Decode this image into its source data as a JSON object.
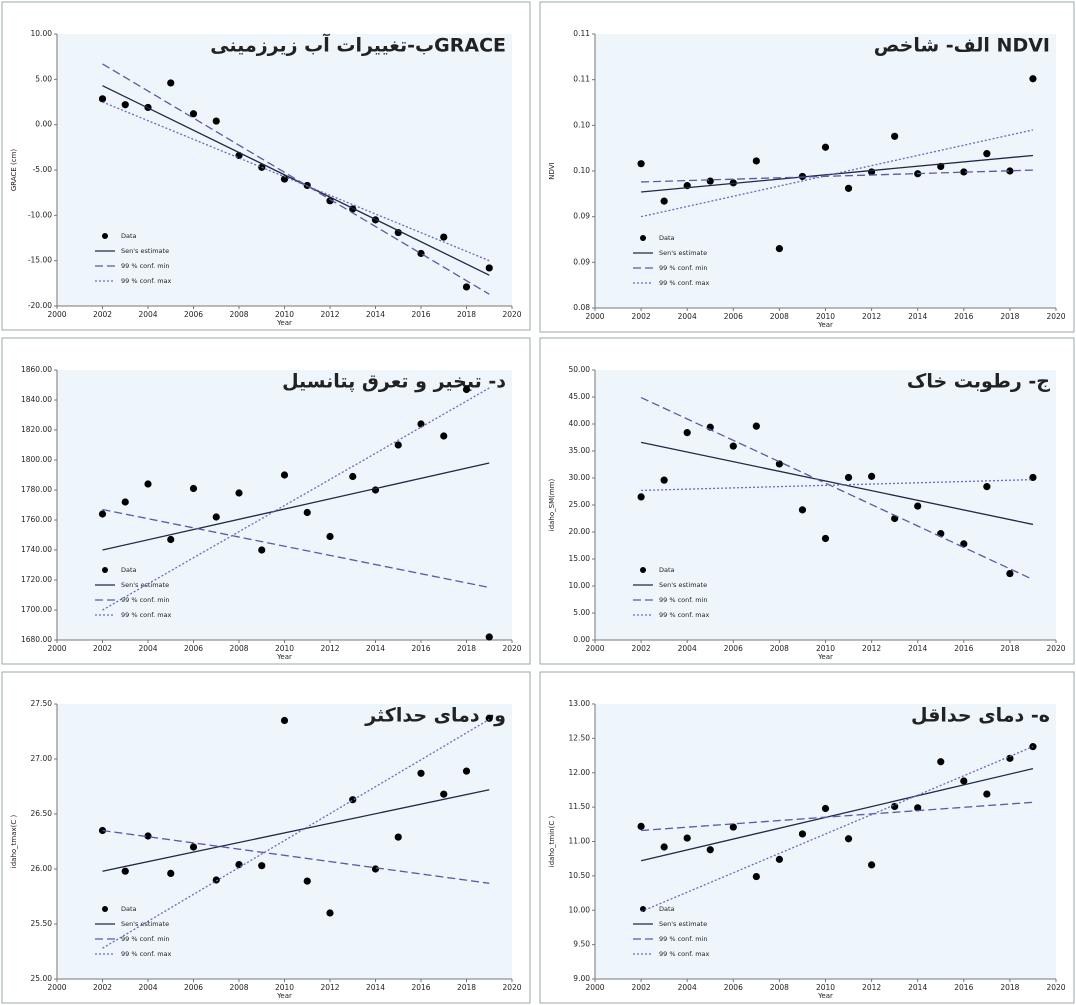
{
  "chart_data": [
    {
      "type": "scatter",
      "title": "ب-تغییرات آب زیرزمینیGRACE",
      "ylabel": "GRACE (cm)",
      "xlabel": "Year",
      "xlim": [
        2000,
        2020
      ],
      "xticks": [
        2000,
        2002,
        2004,
        2006,
        2008,
        2010,
        2012,
        2014,
        2016,
        2018,
        2020
      ],
      "ylim": [
        -20,
        10
      ],
      "yticks": [
        {
          "value": -20,
          "label": "-20.00"
        },
        {
          "value": -15,
          "label": "-15.00"
        },
        {
          "value": -10,
          "label": "-10.00"
        },
        {
          "value": -5,
          "label": "-5.00"
        },
        {
          "value": 0,
          "label": "0.00"
        },
        {
          "value": 5,
          "label": "5.00"
        },
        {
          "value": 10,
          "label": "10.00"
        }
      ],
      "series": [
        {
          "name": "Data",
          "mode": "markers",
          "color": "#000000",
          "x": [
            2002,
            2003,
            2004,
            2005,
            2006,
            2007,
            2008,
            2009,
            2010,
            2011,
            2012,
            2013,
            2014,
            2015,
            2016,
            2017,
            2018,
            2019
          ],
          "values": [
            2.85,
            2.2,
            1.9,
            4.6,
            1.2,
            0.4,
            -3.4,
            -4.7,
            -6.0,
            -6.7,
            -8.4,
            -9.3,
            -10.5,
            -11.9,
            -14.2,
            -12.4,
            -17.9,
            -15.8
          ]
        },
        {
          "name": "Sen's estimate",
          "mode": "solid",
          "color": "#1f2a44",
          "x": [
            2002,
            2019
          ],
          "values": [
            4.3,
            -16.6
          ]
        },
        {
          "name": "99 % conf. min",
          "mode": "dashed",
          "color": "#5a5aa8",
          "x": [
            2002,
            2019
          ],
          "values": [
            6.7,
            -18.7
          ]
        },
        {
          "name": "99 % conf. max",
          "mode": "dotted",
          "color": "#6a6ac0",
          "x": [
            2002,
            2019
          ],
          "values": [
            2.5,
            -15.0
          ]
        }
      ]
    },
    {
      "type": "scatter",
      "title": "الف- شاخص NDVI",
      "ylabel": "NDVI",
      "xlabel": "Year",
      "xlim": [
        2000,
        2020
      ],
      "xticks": [
        2000,
        2002,
        2004,
        2006,
        2008,
        2010,
        2012,
        2014,
        2016,
        2018,
        2020
      ],
      "ylim": [
        0.08,
        0.11
      ],
      "yticks": [
        {
          "value": 0.08,
          "label": "0.08"
        },
        {
          "value": 0.085,
          "label": "0.09"
        },
        {
          "value": 0.09,
          "label": "0.09"
        },
        {
          "value": 0.095,
          "label": "0.10"
        },
        {
          "value": 0.1,
          "label": "0.10"
        },
        {
          "value": 0.105,
          "label": "0.11"
        },
        {
          "value": 0.11,
          "label": "0.11"
        }
      ],
      "series": [
        {
          "name": "Data",
          "mode": "markers",
          "color": "#000000",
          "x": [
            2002,
            2003,
            2004,
            2005,
            2006,
            2007,
            2008,
            2009,
            2010,
            2011,
            2012,
            2013,
            2014,
            2015,
            2016,
            2017,
            2018,
            2019
          ],
          "values": [
            0.0958,
            0.0917,
            0.0934,
            0.0939,
            0.0937,
            0.0961,
            0.0865,
            0.0944,
            0.0976,
            0.0931,
            0.0949,
            0.0988,
            0.0947,
            0.0955,
            0.0949,
            0.0969,
            0.095,
            0.1051
          ]
        },
        {
          "name": "Sen's estimate",
          "mode": "solid",
          "color": "#1f2a44",
          "x": [
            2002,
            2019
          ],
          "values": [
            0.0927,
            0.0967
          ]
        },
        {
          "name": "99 % conf. min",
          "mode": "dashed",
          "color": "#5a5aa8",
          "x": [
            2002,
            2019
          ],
          "values": [
            0.0938,
            0.0951
          ]
        },
        {
          "name": "99 % conf. max",
          "mode": "dotted",
          "color": "#6a6ac0",
          "x": [
            2002,
            2019
          ],
          "values": [
            0.09,
            0.0995
          ]
        }
      ]
    },
    {
      "type": "scatter",
      "title": "د- تبخیر و تعرق پتانسیل",
      "xlabel": "Year",
      "xlim": [
        2000,
        2020
      ],
      "xticks": [
        2000,
        2002,
        2004,
        2006,
        2008,
        2010,
        2012,
        2014,
        2016,
        2018,
        2020
      ],
      "ylim": [
        1680,
        1860
      ],
      "yticks": [
        {
          "value": 1680,
          "label": "1680.00"
        },
        {
          "value": 1700,
          "label": "1700.00"
        },
        {
          "value": 1720,
          "label": "1720.00"
        },
        {
          "value": 1740,
          "label": "1740.00"
        },
        {
          "value": 1760,
          "label": "1760.00"
        },
        {
          "value": 1780,
          "label": "1780.00"
        },
        {
          "value": 1800,
          "label": "1800.00"
        },
        {
          "value": 1820,
          "label": "1820.00"
        },
        {
          "value": 1840,
          "label": "1840.00"
        },
        {
          "value": 1860,
          "label": "1860.00"
        }
      ],
      "series": [
        {
          "name": "Data",
          "mode": "markers",
          "color": "#000000",
          "x": [
            2002,
            2003,
            2004,
            2005,
            2006,
            2007,
            2008,
            2009,
            2010,
            2011,
            2012,
            2013,
            2014,
            2015,
            2016,
            2017,
            2018,
            2019
          ],
          "values": [
            1764,
            1772,
            1784,
            1747,
            1781,
            1762,
            1778,
            1740,
            1790,
            1765,
            1749,
            1789,
            1780,
            1810,
            1824,
            1816,
            1847,
            1682
          ]
        },
        {
          "name": "Sen's estimate",
          "mode": "solid",
          "color": "#1f2a44",
          "x": [
            2002,
            2019
          ],
          "values": [
            1740,
            1798
          ]
        },
        {
          "name": "99 % conf. min",
          "mode": "dashed",
          "color": "#5a5aa8",
          "x": [
            2002,
            2019
          ],
          "values": [
            1767,
            1715
          ]
        },
        {
          "name": "99 % conf. max",
          "mode": "dotted",
          "color": "#6a6ac0",
          "x": [
            2002,
            2019
          ],
          "values": [
            1700,
            1848
          ]
        }
      ]
    },
    {
      "type": "scatter",
      "title": "ج- رطوبت خاک",
      "ylabel": "idaho_SM(mm)",
      "xlabel": "Year",
      "xlim": [
        2000,
        2020
      ],
      "xticks": [
        2000,
        2002,
        2004,
        2006,
        2008,
        2010,
        2012,
        2014,
        2016,
        2018,
        2020
      ],
      "ylim": [
        0,
        50
      ],
      "yticks": [
        {
          "value": 0,
          "label": "0.00"
        },
        {
          "value": 5,
          "label": "5.00"
        },
        {
          "value": 10,
          "label": "10.00"
        },
        {
          "value": 15,
          "label": "15.00"
        },
        {
          "value": 20,
          "label": "20.00"
        },
        {
          "value": 25,
          "label": "25.00"
        },
        {
          "value": 30,
          "label": "30.00"
        },
        {
          "value": 35,
          "label": "35.00"
        },
        {
          "value": 40,
          "label": "40.00"
        },
        {
          "value": 45,
          "label": "45.00"
        },
        {
          "value": 50,
          "label": "50.00"
        }
      ],
      "series": [
        {
          "name": "Data",
          "mode": "markers",
          "color": "#000000",
          "x": [
            2002,
            2003,
            2004,
            2005,
            2006,
            2007,
            2008,
            2009,
            2010,
            2011,
            2012,
            2013,
            2014,
            2015,
            2016,
            2017,
            2018,
            2019
          ],
          "values": [
            26.5,
            29.6,
            38.4,
            39.4,
            35.9,
            39.6,
            32.6,
            24.1,
            18.8,
            30.1,
            30.3,
            22.5,
            24.8,
            19.7,
            17.8,
            28.4,
            12.3,
            30.1
          ]
        },
        {
          "name": "Sen's estimate",
          "mode": "solid",
          "color": "#1f2a44",
          "x": [
            2002,
            2019
          ],
          "values": [
            36.6,
            21.4
          ]
        },
        {
          "name": "99 % conf. min",
          "mode": "dashed",
          "color": "#5a5aa8",
          "x": [
            2002,
            2019
          ],
          "values": [
            44.9,
            11.2
          ]
        },
        {
          "name": "99 % conf. max",
          "mode": "dotted",
          "color": "#6a6ac0",
          "x": [
            2002,
            2019
          ],
          "values": [
            27.7,
            29.7
          ]
        }
      ]
    },
    {
      "type": "scatter",
      "title": "و- دمای حداکثر",
      "ylabel": "idaho_tmax(C )",
      "xlabel": "Year",
      "xlim": [
        2000,
        2020
      ],
      "xticks": [
        2000,
        2002,
        2004,
        2006,
        2008,
        2010,
        2012,
        2014,
        2016,
        2018,
        2020
      ],
      "ylim": [
        25,
        27.5
      ],
      "yticks": [
        {
          "value": 25,
          "label": "25.00"
        },
        {
          "value": 25.5,
          "label": "25.50"
        },
        {
          "value": 26,
          "label": "26.00"
        },
        {
          "value": 26.5,
          "label": "26.50"
        },
        {
          "value": 27,
          "label": "27.00"
        },
        {
          "value": 27.5,
          "label": "27.50"
        }
      ],
      "series": [
        {
          "name": "Data",
          "mode": "markers",
          "color": "#000000",
          "x": [
            2002,
            2003,
            2004,
            2005,
            2006,
            2007,
            2008,
            2009,
            2010,
            2011,
            2012,
            2013,
            2014,
            2015,
            2016,
            2017,
            2018,
            2019
          ],
          "values": [
            26.35,
            25.98,
            26.3,
            25.96,
            26.2,
            25.9,
            26.04,
            26.03,
            27.35,
            25.89,
            25.6,
            26.63,
            26.0,
            26.29,
            26.87,
            26.68,
            26.89,
            27.37
          ]
        },
        {
          "name": "Sen's estimate",
          "mode": "solid",
          "color": "#1f2a44",
          "x": [
            2002,
            2019
          ],
          "values": [
            25.98,
            26.72
          ]
        },
        {
          "name": "99 % conf. min",
          "mode": "dashed",
          "color": "#5a5aa8",
          "x": [
            2002,
            2019
          ],
          "values": [
            26.35,
            25.87
          ]
        },
        {
          "name": "99 % conf. max",
          "mode": "dotted",
          "color": "#6a6ac0",
          "x": [
            2002,
            2019
          ],
          "values": [
            25.28,
            27.36
          ]
        }
      ]
    },
    {
      "type": "scatter",
      "title": "ه- دمای حداقل",
      "ylabel": "idaho_tmin(C )",
      "xlabel": "Year",
      "xlim": [
        2000,
        2020
      ],
      "xticks": [
        2000,
        2002,
        2004,
        2006,
        2008,
        2010,
        2012,
        2014,
        2016,
        2018,
        2020
      ],
      "ylim": [
        9,
        13
      ],
      "yticks": [
        {
          "value": 9,
          "label": "9.00"
        },
        {
          "value": 9.5,
          "label": "9.50"
        },
        {
          "value": 10,
          "label": "10.00"
        },
        {
          "value": 10.5,
          "label": "10.50"
        },
        {
          "value": 11,
          "label": "11.00"
        },
        {
          "value": 11.5,
          "label": "11.50"
        },
        {
          "value": 12,
          "label": "12.00"
        },
        {
          "value": 12.5,
          "label": "12.50"
        },
        {
          "value": 13,
          "label": "13.00"
        }
      ],
      "series": [
        {
          "name": "Data",
          "mode": "markers",
          "color": "#000000",
          "x": [
            2002,
            2003,
            2004,
            2005,
            2006,
            2007,
            2008,
            2009,
            2010,
            2011,
            2012,
            2013,
            2014,
            2015,
            2016,
            2017,
            2018,
            2019
          ],
          "values": [
            11.22,
            10.92,
            11.05,
            10.88,
            11.21,
            10.49,
            10.74,
            11.11,
            11.48,
            11.04,
            10.66,
            11.51,
            11.49,
            12.16,
            11.88,
            11.69,
            12.21,
            12.38
          ]
        },
        {
          "name": "Sen's estimate",
          "mode": "solid",
          "color": "#1f2a44",
          "x": [
            2002,
            2019
          ],
          "values": [
            10.72,
            12.06
          ]
        },
        {
          "name": "99 % conf. min",
          "mode": "dashed",
          "color": "#5a5aa8",
          "x": [
            2002,
            2019
          ],
          "values": [
            11.16,
            11.57
          ]
        },
        {
          "name": "99 % conf. max",
          "mode": "dotted",
          "color": "#6a6ac0",
          "x": [
            2002,
            2019
          ],
          "values": [
            9.98,
            12.38
          ]
        }
      ]
    }
  ]
}
